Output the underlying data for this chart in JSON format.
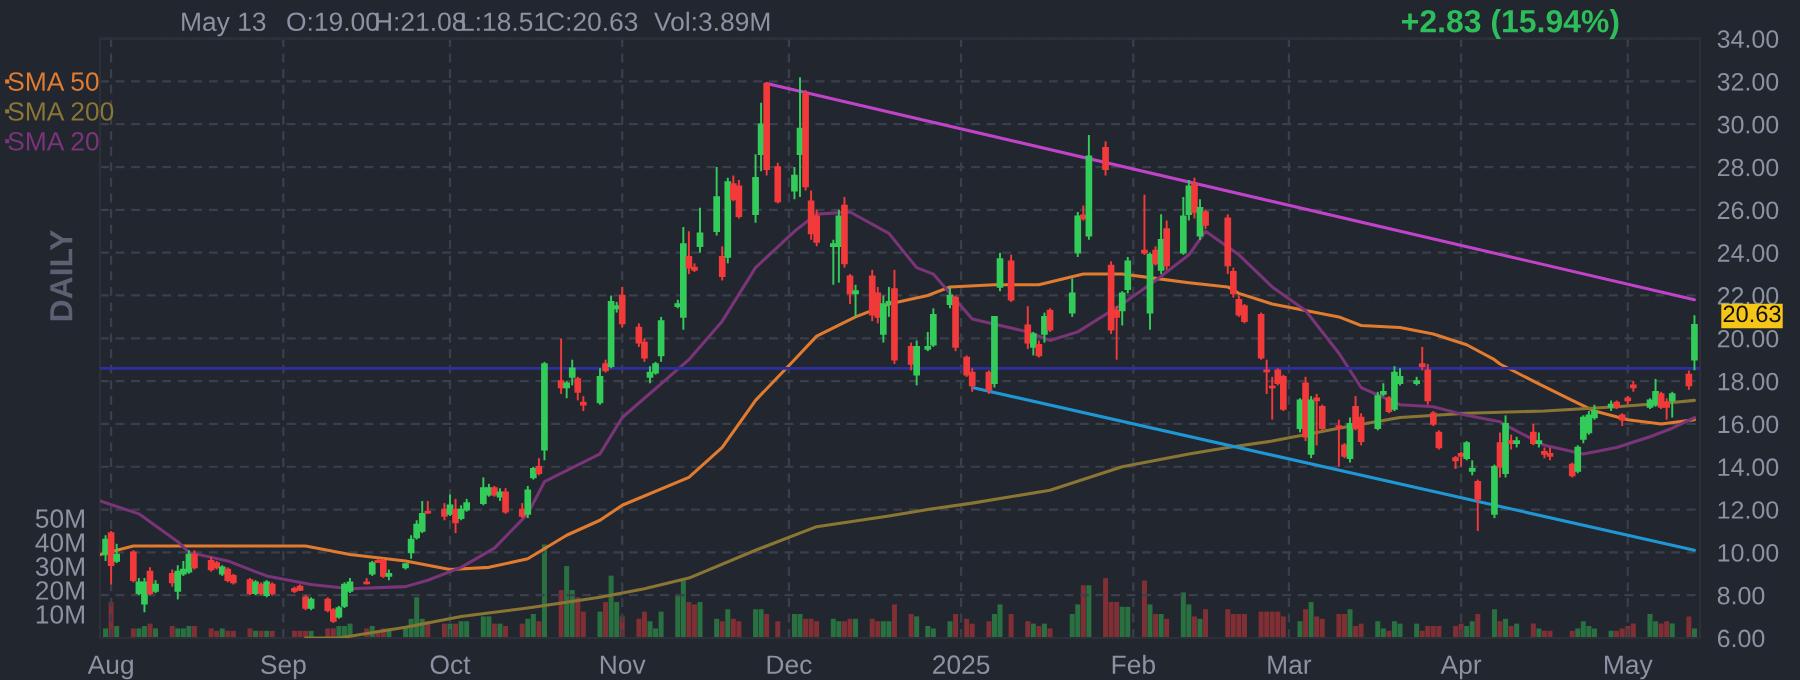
{
  "chart_data": {
    "type": "candlestick",
    "x": [
      "2024-07-31",
      "2024-08-01",
      "2024-08-02",
      "2024-08-05",
      "2024-08-06",
      "2024-08-07",
      "2024-08-08",
      "2024-08-09",
      "2024-08-12",
      "2024-08-13",
      "2024-08-14",
      "2024-08-15",
      "2024-08-16",
      "2024-08-19",
      "2024-08-20",
      "2024-08-21",
      "2024-08-22",
      "2024-08-23",
      "2024-08-26",
      "2024-08-27",
      "2024-08-28",
      "2024-08-29",
      "2024-08-30",
      "2024-09-03",
      "2024-09-04",
      "2024-09-05",
      "2024-09-06",
      "2024-09-09",
      "2024-09-10",
      "2024-09-11",
      "2024-09-12",
      "2024-09-13",
      "2024-09-16",
      "2024-09-17",
      "2024-09-18",
      "2024-09-19",
      "2024-09-20",
      "2024-09-23",
      "2024-09-24",
      "2024-09-25",
      "2024-09-26",
      "2024-09-27",
      "2024-09-30",
      "2024-10-01",
      "2024-10-02",
      "2024-10-03",
      "2024-10-04",
      "2024-10-07",
      "2024-10-08",
      "2024-10-09",
      "2024-10-10",
      "2024-10-11",
      "2024-10-14",
      "2024-10-15",
      "2024-10-16",
      "2024-10-17",
      "2024-10-18",
      "2024-10-21",
      "2024-10-22",
      "2024-10-23",
      "2024-10-24",
      "2024-10-25",
      "2024-10-28",
      "2024-10-29",
      "2024-10-30",
      "2024-10-31",
      "2024-11-01",
      "2024-11-04",
      "2024-11-05",
      "2024-11-06",
      "2024-11-07",
      "2024-11-08",
      "2024-11-11",
      "2024-11-12",
      "2024-11-13",
      "2024-11-14",
      "2024-11-15",
      "2024-11-18",
      "2024-11-19",
      "2024-11-20",
      "2024-11-21",
      "2024-11-22",
      "2024-11-25",
      "2024-11-26",
      "2024-11-27",
      "2024-11-29",
      "2024-12-02",
      "2024-12-03",
      "2024-12-04",
      "2024-12-05",
      "2024-12-06",
      "2024-12-09",
      "2024-12-10",
      "2024-12-11",
      "2024-12-12",
      "2024-12-13",
      "2024-12-16",
      "2024-12-17",
      "2024-12-18",
      "2024-12-19",
      "2024-12-20",
      "2024-12-23",
      "2024-12-24",
      "2024-12-26",
      "2024-12-27",
      "2024-12-30",
      "2024-12-31",
      "2025-01-02",
      "2025-01-03",
      "2025-01-06",
      "2025-01-07",
      "2025-01-08",
      "2025-01-10",
      "2025-01-13",
      "2025-01-14",
      "2025-01-15",
      "2025-01-16",
      "2025-01-17",
      "2025-01-21",
      "2025-01-22",
      "2025-01-23",
      "2025-01-24",
      "2025-01-27",
      "2025-01-28",
      "2025-01-29",
      "2025-01-30",
      "2025-01-31",
      "2025-02-03",
      "2025-02-04",
      "2025-02-05",
      "2025-02-06",
      "2025-02-07",
      "2025-02-10",
      "2025-02-11",
      "2025-02-12",
      "2025-02-13",
      "2025-02-14",
      "2025-02-18",
      "2025-02-19",
      "2025-02-20",
      "2025-02-21",
      "2025-02-24",
      "2025-02-25",
      "2025-02-26",
      "2025-02-27",
      "2025-02-28",
      "2025-03-03",
      "2025-03-04",
      "2025-03-05",
      "2025-03-06",
      "2025-03-07",
      "2025-03-10",
      "2025-03-11",
      "2025-03-12",
      "2025-03-13",
      "2025-03-14",
      "2025-03-17",
      "2025-03-18",
      "2025-03-19",
      "2025-03-20",
      "2025-03-21",
      "2025-03-24",
      "2025-03-25",
      "2025-03-26",
      "2025-03-27",
      "2025-03-28",
      "2025-03-31",
      "2025-04-01",
      "2025-04-02",
      "2025-04-03",
      "2025-04-04",
      "2025-04-07",
      "2025-04-08",
      "2025-04-09",
      "2025-04-10",
      "2025-04-11",
      "2025-04-14",
      "2025-04-15",
      "2025-04-16",
      "2025-04-17",
      "2025-04-21",
      "2025-04-22",
      "2025-04-23",
      "2025-04-24",
      "2025-04-25",
      "2025-04-28",
      "2025-04-29",
      "2025-04-30",
      "2025-05-01",
      "2025-05-02",
      "2025-05-05",
      "2025-05-06",
      "2025-05-07",
      "2025-05-08",
      "2025-05-09",
      "2025-05-12",
      "2025-05-13"
    ],
    "ohlc": [
      [
        9.9,
        10.8,
        9.6,
        10.6
      ],
      [
        10.9,
        11.0,
        8.5,
        9.4
      ],
      [
        9.6,
        10.4,
        9.5,
        9.9
      ],
      [
        10.0,
        10.1,
        8.6,
        8.7
      ],
      [
        8.1,
        8.8,
        8.0,
        8.6
      ],
      [
        7.6,
        8.8,
        7.2,
        8.6
      ],
      [
        9.1,
        9.3,
        8.0,
        8.1
      ],
      [
        8.2,
        8.7,
        8.1,
        8.5
      ],
      [
        9.0,
        9.2,
        8.4,
        8.6
      ],
      [
        8.2,
        9.4,
        7.8,
        9.1
      ],
      [
        9.0,
        9.6,
        8.9,
        9.2
      ],
      [
        9.1,
        10.1,
        9.0,
        9.9
      ],
      [
        9.9,
        10.1,
        9.2,
        9.3
      ],
      [
        9.6,
        9.8,
        9.1,
        9.2
      ],
      [
        9.5,
        9.6,
        9.2,
        9.3
      ],
      [
        9.0,
        9.4,
        8.9,
        9.3
      ],
      [
        9.2,
        9.3,
        8.6,
        8.7
      ],
      [
        8.9,
        9.0,
        8.5,
        8.6
      ],
      [
        8.7,
        8.8,
        8.0,
        8.1
      ],
      [
        8.1,
        8.7,
        8.0,
        8.6
      ],
      [
        8.5,
        8.6,
        8.0,
        8.1
      ],
      [
        8.0,
        8.7,
        7.9,
        8.6
      ],
      [
        8.5,
        8.6,
        8.0,
        8.1
      ],
      [
        8.3,
        8.4,
        8.1,
        8.2
      ],
      [
        8.4,
        8.5,
        8.2,
        8.25
      ],
      [
        7.9,
        8.0,
        7.3,
        7.4
      ],
      [
        7.4,
        7.9,
        7.3,
        7.8
      ],
      [
        7.8,
        7.9,
        7.2,
        7.3
      ],
      [
        7.3,
        7.4,
        6.7,
        6.8
      ],
      [
        7.0,
        7.5,
        6.9,
        7.4
      ],
      [
        7.5,
        8.6,
        7.4,
        8.5
      ],
      [
        8.2,
        8.8,
        8.1,
        8.6
      ],
      [
        8.6,
        8.8,
        8.5,
        8.55
      ],
      [
        9.0,
        9.6,
        8.9,
        9.5
      ],
      [
        9.6,
        9.7,
        9.5,
        9.55
      ],
      [
        9.6,
        9.7,
        8.8,
        8.9
      ],
      [
        8.9,
        9.2,
        8.7,
        9.0
      ],
      [
        9.3,
        9.5,
        9.2,
        9.45
      ],
      [
        10.0,
        10.8,
        9.7,
        10.6
      ],
      [
        10.7,
        11.5,
        10.6,
        11.3
      ],
      [
        11.0,
        12.4,
        10.9,
        11.8
      ],
      [
        11.9,
        12.4,
        11.8,
        11.85
      ],
      [
        12.0,
        12.3,
        11.5,
        11.7
      ],
      [
        11.8,
        12.7,
        11.7,
        12.2
      ],
      [
        12.0,
        12.5,
        10.9,
        11.4
      ],
      [
        11.6,
        12.2,
        11.5,
        12.0
      ],
      [
        12.0,
        12.5,
        11.9,
        12.3
      ],
      [
        12.3,
        13.5,
        12.2,
        13.0
      ],
      [
        12.7,
        13.2,
        12.6,
        13.0
      ],
      [
        13.0,
        13.1,
        12.6,
        12.7
      ],
      [
        12.6,
        13.0,
        12.4,
        12.8
      ],
      [
        12.8,
        13.0,
        11.8,
        11.9
      ],
      [
        12.0,
        12.3,
        11.6,
        11.7
      ],
      [
        11.8,
        13.1,
        11.6,
        12.9
      ],
      [
        13.5,
        14.0,
        13.4,
        13.9
      ],
      [
        14.0,
        14.4,
        13.6,
        13.7
      ],
      [
        14.8,
        18.9,
        14.3,
        18.8
      ],
      [
        18.0,
        20.0,
        17.4,
        17.7
      ],
      [
        17.7,
        18.0,
        17.2,
        17.9
      ],
      [
        18.2,
        19.0,
        17.8,
        18.6
      ],
      [
        18.1,
        18.2,
        17.1,
        17.5
      ],
      [
        17.0,
        17.3,
        16.6,
        16.9
      ],
      [
        17.0,
        18.6,
        16.9,
        18.2
      ],
      [
        18.8,
        19.0,
        18.4,
        18.5
      ],
      [
        18.7,
        22.0,
        18.6,
        21.7
      ],
      [
        21.4,
        21.7,
        21.2,
        21.5
      ],
      [
        22.0,
        22.4,
        20.5,
        20.7
      ],
      [
        20.5,
        20.7,
        19.6,
        19.8
      ],
      [
        19.8,
        20.0,
        18.9,
        19.1
      ],
      [
        18.2,
        18.7,
        17.9,
        18.4
      ],
      [
        18.4,
        18.9,
        18.3,
        18.8
      ],
      [
        19.2,
        21.0,
        18.9,
        20.8
      ],
      [
        21.5,
        21.8,
        21.4,
        21.6
      ],
      [
        21.0,
        25.2,
        20.4,
        24.4
      ],
      [
        23.8,
        25.0,
        23.0,
        23.3
      ],
      [
        23.3,
        23.5,
        23.1,
        23.2
      ],
      [
        24.3,
        26.1,
        24.0,
        24.9
      ],
      [
        25.0,
        28.0,
        24.8,
        26.6
      ],
      [
        23.8,
        24.3,
        22.7,
        22.9
      ],
      [
        23.8,
        27.5,
        23.5,
        27.3
      ],
      [
        27.2,
        27.6,
        26.4,
        26.5
      ],
      [
        27.1,
        27.4,
        25.6,
        25.7
      ],
      [
        25.8,
        28.6,
        25.4,
        27.5
      ],
      [
        28.6,
        31.0,
        27.8,
        30.0
      ],
      [
        31.9,
        31.9,
        27.6,
        27.9
      ],
      [
        28.0,
        28.2,
        26.3,
        26.4
      ],
      [
        26.9,
        28.0,
        26.5,
        27.6
      ],
      [
        28.6,
        32.2,
        26.6,
        29.8
      ],
      [
        31.4,
        31.6,
        26.9,
        27.1
      ],
      [
        26.4,
        26.9,
        24.6,
        24.9
      ],
      [
        25.7,
        26.0,
        24.3,
        24.5
      ],
      [
        24.3,
        24.6,
        22.5,
        24.4
      ],
      [
        24.3,
        26.0,
        22.6,
        25.7
      ],
      [
        26.2,
        26.6,
        23.3,
        23.5
      ],
      [
        22.9,
        23.0,
        21.6,
        22.1
      ],
      [
        22.1,
        22.5,
        21.0,
        22.2
      ],
      [
        22.9,
        23.2,
        20.8,
        21.1
      ],
      [
        22.1,
        22.4,
        20.7,
        21.0
      ],
      [
        20.2,
        22.0,
        19.8,
        21.6
      ],
      [
        21.6,
        22.4,
        21.0,
        21.7
      ],
      [
        22.3,
        23.2,
        18.8,
        19.0
      ],
      [
        19.6,
        19.8,
        18.5,
        18.8
      ],
      [
        18.3,
        19.9,
        17.8,
        19.6
      ],
      [
        19.5,
        20.3,
        19.4,
        19.6
      ],
      [
        19.7,
        21.4,
        19.6,
        21.1
      ],
      [
        21.6,
        22.4,
        21.4,
        22.0
      ],
      [
        21.9,
        22.0,
        19.4,
        19.6
      ],
      [
        19.1,
        19.2,
        18.2,
        18.3
      ],
      [
        18.4,
        18.6,
        17.5,
        17.8
      ],
      [
        18.4,
        18.5,
        17.4,
        17.6
      ],
      [
        17.9,
        21.0,
        17.7,
        21.0
      ],
      [
        22.4,
        24.0,
        22.2,
        23.7
      ],
      [
        23.6,
        23.9,
        21.7,
        21.8
      ],
      [
        20.6,
        21.5,
        19.5,
        19.8
      ],
      [
        19.6,
        20.3,
        19.2,
        20.2
      ],
      [
        19.7,
        19.9,
        19.1,
        19.2
      ],
      [
        20.2,
        21.2,
        19.8,
        21.0
      ],
      [
        21.3,
        21.4,
        20.3,
        20.4
      ],
      [
        21.2,
        22.8,
        21.0,
        22.1
      ],
      [
        24.0,
        25.9,
        23.8,
        25.7
      ],
      [
        25.75,
        26.2,
        25.5,
        25.6
      ],
      [
        24.8,
        29.5,
        24.6,
        28.5
      ],
      [
        28.9,
        29.2,
        27.6,
        27.9
      ],
      [
        23.4,
        23.6,
        20.2,
        20.4
      ],
      [
        21.3,
        21.5,
        19.0,
        21.0
      ],
      [
        21.3,
        22.2,
        20.6,
        22.1
      ],
      [
        22.3,
        23.8,
        22.1,
        23.6
      ],
      [
        24.1,
        26.7,
        23.9,
        24.0
      ],
      [
        21.2,
        24.0,
        20.4,
        23.9
      ],
      [
        24.1,
        24.3,
        23.4,
        23.5
      ],
      [
        23.2,
        25.8,
        23.0,
        24.6
      ],
      [
        25.1,
        25.5,
        23.2,
        23.4
      ],
      [
        24.0,
        26.6,
        23.9,
        25.7
      ],
      [
        25.8,
        27.4,
        25.5,
        27.1
      ],
      [
        27.2,
        27.5,
        25.6,
        25.9
      ],
      [
        24.8,
        26.5,
        24.6,
        26.1
      ],
      [
        25.9,
        26.0,
        25.1,
        25.3
      ],
      [
        25.6,
        25.8,
        23.0,
        23.4
      ],
      [
        23.1,
        23.3,
        21.9,
        22.1
      ],
      [
        21.8,
        22.0,
        21.0,
        21.1
      ],
      [
        21.5,
        21.6,
        20.7,
        20.8
      ],
      [
        21.1,
        21.2,
        19.0,
        19.1
      ],
      [
        18.5,
        19.0,
        17.4,
        18.45
      ],
      [
        17.75,
        18.2,
        16.2,
        17.7
      ],
      [
        18.5,
        18.6,
        17.8,
        17.9
      ],
      [
        18.2,
        18.3,
        16.6,
        16.7
      ],
      [
        15.8,
        17.2,
        15.6,
        17.1
      ],
      [
        17.9,
        18.2,
        15.2,
        15.4
      ],
      [
        14.6,
        17.3,
        14.4,
        17.1
      ],
      [
        17.2,
        17.4,
        15.0,
        17.1
      ],
      [
        16.8,
        16.9,
        15.7,
        15.8
      ],
      [
        15.9,
        16.2,
        14.0,
        15.8
      ],
      [
        15.0,
        15.1,
        14.4,
        14.5
      ],
      [
        14.4,
        16.3,
        14.2,
        16.0
      ],
      [
        16.8,
        17.3,
        15.7,
        15.8
      ],
      [
        16.3,
        16.5,
        15.0,
        15.2
      ],
      [
        15.8,
        17.5,
        15.7,
        17.3
      ],
      [
        17.4,
        17.9,
        17.3,
        17.5
      ],
      [
        17.2,
        17.3,
        16.5,
        16.6
      ],
      [
        16.7,
        18.7,
        16.6,
        18.4
      ],
      [
        17.9,
        18.6,
        17.8,
        18.2
      ],
      [
        17.9,
        18.2,
        17.8,
        18.0
      ],
      [
        18.8,
        19.6,
        18.5,
        18.7
      ],
      [
        18.5,
        18.8,
        16.9,
        17.1
      ],
      [
        16.5,
        16.6,
        15.9,
        16.0
      ],
      [
        15.6,
        15.7,
        14.8,
        14.9
      ],
      [
        14.4,
        14.5,
        13.9,
        14.3
      ],
      [
        14.6,
        14.7,
        14.0,
        14.5
      ],
      [
        14.4,
        15.2,
        14.3,
        15.1
      ],
      [
        13.8,
        14.3,
        13.6,
        13.9
      ],
      [
        13.3,
        13.4,
        11.0,
        12.5
      ],
      [
        11.8,
        14.1,
        11.6,
        14.0
      ],
      [
        15.1,
        15.6,
        13.5,
        14.0
      ],
      [
        13.7,
        16.4,
        13.5,
        16.0
      ],
      [
        15.2,
        15.5,
        14.8,
        15.1
      ],
      [
        15.1,
        15.4,
        14.9,
        15.2
      ],
      [
        15.6,
        16.0,
        15.0,
        15.1
      ],
      [
        15.1,
        15.6,
        14.9,
        15.2
      ],
      [
        14.7,
        14.9,
        14.4,
        14.6
      ],
      [
        14.6,
        14.9,
        14.3,
        14.5
      ],
      [
        14.1,
        14.2,
        13.5,
        13.6
      ],
      [
        13.8,
        15.0,
        13.7,
        14.9
      ],
      [
        15.3,
        16.4,
        15.1,
        16.3
      ],
      [
        15.6,
        16.6,
        15.5,
        16.4
      ],
      [
        16.3,
        16.9,
        16.2,
        16.6
      ],
      [
        16.8,
        17.1,
        16.6,
        16.9
      ],
      [
        17.0,
        17.1,
        16.7,
        16.8
      ],
      [
        16.4,
        16.5,
        15.9,
        16.2
      ],
      [
        17.2,
        17.3,
        16.9,
        17.1
      ],
      [
        17.8,
        18.0,
        17.5,
        17.7
      ],
      [
        16.8,
        17.2,
        16.7,
        17.1
      ],
      [
        16.9,
        18.1,
        16.8,
        17.5
      ],
      [
        17.4,
        17.5,
        16.7,
        16.8
      ],
      [
        17.0,
        17.2,
        16.2,
        16.8
      ],
      [
        17.1,
        17.5,
        16.3,
        17.4
      ],
      [
        18.3,
        18.5,
        17.6,
        17.8
      ],
      [
        19.0,
        21.08,
        18.51,
        20.63
      ]
    ],
    "colors": [
      "#33cc5a",
      "#f23a3a",
      "#33cc5a",
      "#f23a3a",
      "#33cc5a",
      "#33cc5a",
      "#f23a3a",
      "#33cc5a",
      "#f23a3a",
      "#33cc5a",
      "#33cc5a",
      "#33cc5a",
      "#f23a3a",
      "#f23a3a",
      "#f23a3a",
      "#33cc5a",
      "#f23a3a",
      "#f23a3a",
      "#f23a3a",
      "#33cc5a",
      "#f23a3a",
      "#33cc5a",
      "#f23a3a",
      "#f23a3a",
      "#f23a3a",
      "#f23a3a",
      "#33cc5a",
      "#f23a3a",
      "#f23a3a",
      "#33cc5a",
      "#33cc5a",
      "#33cc5a",
      "#f23a3a",
      "#33cc5a",
      "#f23a3a",
      "#f23a3a",
      "#33cc5a",
      "#33cc5a",
      "#33cc5a",
      "#33cc5a",
      "#33cc5a",
      "#f23a3a",
      "#f23a3a",
      "#33cc5a",
      "#f23a3a",
      "#33cc5a",
      "#33cc5a",
      "#33cc5a",
      "#33cc5a",
      "#f23a3a",
      "#33cc5a",
      "#f23a3a",
      "#f23a3a",
      "#33cc5a",
      "#33cc5a",
      "#f23a3a",
      "#33cc5a",
      "#f23a3a",
      "#33cc5a",
      "#33cc5a",
      "#f23a3a",
      "#f23a3a",
      "#33cc5a",
      "#f23a3a",
      "#33cc5a",
      "#33cc5a",
      "#f23a3a",
      "#f23a3a",
      "#f23a3a",
      "#33cc5a",
      "#33cc5a",
      "#33cc5a",
      "#33cc5a",
      "#33cc5a",
      "#f23a3a",
      "#f23a3a",
      "#33cc5a",
      "#33cc5a",
      "#f23a3a",
      "#33cc5a",
      "#f23a3a",
      "#f23a3a",
      "#33cc5a",
      "#33cc5a",
      "#f23a3a",
      "#f23a3a",
      "#33cc5a",
      "#33cc5a",
      "#f23a3a",
      "#f23a3a",
      "#f23a3a",
      "#33cc5a",
      "#33cc5a",
      "#f23a3a",
      "#f23a3a",
      "#33cc5a",
      "#f23a3a",
      "#f23a3a",
      "#33cc5a",
      "#33cc5a",
      "#f23a3a",
      "#f23a3a",
      "#33cc5a",
      "#33cc5a",
      "#33cc5a",
      "#33cc5a",
      "#f23a3a",
      "#f23a3a",
      "#f23a3a",
      "#f23a3a",
      "#33cc5a",
      "#33cc5a",
      "#f23a3a",
      "#f23a3a",
      "#33cc5a",
      "#f23a3a",
      "#33cc5a",
      "#f23a3a",
      "#33cc5a",
      "#33cc5a",
      "#f23a3a",
      "#33cc5a",
      "#f23a3a",
      "#f23a3a",
      "#f23a3a",
      "#33cc5a",
      "#33cc5a",
      "#f23a3a",
      "#33cc5a",
      "#f23a3a",
      "#33cc5a",
      "#f23a3a",
      "#33cc5a",
      "#33cc5a",
      "#f23a3a",
      "#33cc5a",
      "#f23a3a",
      "#f23a3a",
      "#f23a3a",
      "#f23a3a",
      "#f23a3a",
      "#f23a3a",
      "#f23a3a",
      "#f23a3a",
      "#f23a3a",
      "#f23a3a",
      "#33cc5a",
      "#f23a3a",
      "#33cc5a",
      "#f23a3a",
      "#f23a3a",
      "#f23a3a",
      "#f23a3a",
      "#33cc5a",
      "#f23a3a",
      "#f23a3a",
      "#33cc5a",
      "#33cc5a",
      "#f23a3a",
      "#33cc5a",
      "#33cc5a",
      "#33cc5a",
      "#f23a3a",
      "#f23a3a",
      "#f23a3a",
      "#f23a3a",
      "#f23a3a",
      "#f23a3a",
      "#33cc5a",
      "#33cc5a",
      "#f23a3a",
      "#33cc5a",
      "#f23a3a",
      "#33cc5a",
      "#f23a3a",
      "#33cc5a",
      "#f23a3a",
      "#33cc5a",
      "#f23a3a",
      "#f23a3a",
      "#f23a3a",
      "#33cc5a",
      "#33cc5a",
      "#33cc5a",
      "#33cc5a",
      "#33cc5a",
      "#f23a3a",
      "#f23a3a",
      "#f23a3a",
      "#f23a3a",
      "#33cc5a",
      "#33cc5a",
      "#f23a3a",
      "#f23a3a",
      "#33cc5a",
      "#f23a3a",
      "#33cc5a"
    ],
    "series": [
      {
        "type": "bar",
        "axis": "y2",
        "colors": [
          "#2a7142",
          "#802f34",
          "#2a7142",
          "#802f34",
          "#2a7142",
          "#2a7142",
          "#802f34",
          "#2a7142",
          "#802f34",
          "#2a7142",
          "#2a7142",
          "#2a7142",
          "#802f34",
          "#802f34",
          "#802f34",
          "#2a7142",
          "#802f34",
          "#802f34",
          "#802f34",
          "#2a7142",
          "#802f34",
          "#2a7142",
          "#802f34",
          "#802f34",
          "#802f34",
          "#802f34",
          "#2a7142",
          "#802f34",
          "#802f34",
          "#2a7142",
          "#2a7142",
          "#2a7142",
          "#802f34",
          "#2a7142",
          "#802f34",
          "#802f34",
          "#2a7142",
          "#2a7142",
          "#2a7142",
          "#2a7142",
          "#2a7142",
          "#802f34",
          "#802f34",
          "#2a7142",
          "#802f34",
          "#2a7142",
          "#2a7142",
          "#2a7142",
          "#2a7142",
          "#802f34",
          "#2a7142",
          "#802f34",
          "#802f34",
          "#2a7142",
          "#2a7142",
          "#802f34",
          "#2a7142",
          "#802f34",
          "#2a7142",
          "#2a7142",
          "#802f34",
          "#802f34",
          "#2a7142",
          "#802f34",
          "#2a7142",
          "#2a7142",
          "#802f34",
          "#802f34",
          "#802f34",
          "#2a7142",
          "#2a7142",
          "#2a7142",
          "#2a7142",
          "#2a7142",
          "#802f34",
          "#802f34",
          "#2a7142",
          "#2a7142",
          "#802f34",
          "#2a7142",
          "#802f34",
          "#802f34",
          "#2a7142",
          "#2a7142",
          "#802f34",
          "#802f34",
          "#2a7142",
          "#2a7142",
          "#802f34",
          "#802f34",
          "#802f34",
          "#2a7142",
          "#2a7142",
          "#802f34",
          "#802f34",
          "#2a7142",
          "#802f34",
          "#802f34",
          "#2a7142",
          "#2a7142",
          "#802f34",
          "#802f34",
          "#2a7142",
          "#2a7142",
          "#2a7142",
          "#2a7142",
          "#802f34",
          "#802f34",
          "#802f34",
          "#802f34",
          "#2a7142",
          "#2a7142",
          "#802f34",
          "#802f34",
          "#2a7142",
          "#802f34",
          "#2a7142",
          "#802f34",
          "#2a7142",
          "#2a7142",
          "#802f34",
          "#2a7142",
          "#802f34",
          "#802f34",
          "#802f34",
          "#2a7142",
          "#2a7142",
          "#802f34",
          "#2a7142",
          "#802f34",
          "#2a7142",
          "#802f34",
          "#2a7142",
          "#2a7142",
          "#802f34",
          "#2a7142",
          "#802f34",
          "#802f34",
          "#802f34",
          "#802f34",
          "#802f34",
          "#802f34",
          "#802f34",
          "#802f34",
          "#802f34",
          "#802f34",
          "#2a7142",
          "#802f34",
          "#2a7142",
          "#802f34",
          "#802f34",
          "#802f34",
          "#802f34",
          "#2a7142",
          "#802f34",
          "#802f34",
          "#2a7142",
          "#2a7142",
          "#802f34",
          "#2a7142",
          "#2a7142",
          "#2a7142",
          "#802f34",
          "#802f34",
          "#802f34",
          "#802f34",
          "#802f34",
          "#802f34",
          "#2a7142",
          "#2a7142",
          "#802f34",
          "#2a7142",
          "#802f34",
          "#2a7142",
          "#802f34",
          "#2a7142",
          "#802f34",
          "#2a7142",
          "#802f34",
          "#802f34",
          "#802f34",
          "#2a7142",
          "#2a7142",
          "#2a7142",
          "#2a7142",
          "#2a7142",
          "#802f34",
          "#802f34",
          "#802f34",
          "#802f34",
          "#2a7142",
          "#2a7142",
          "#802f34",
          "#802f34",
          "#2a7142",
          "#802f34",
          "#2a7142"
        ],
        "values": [
          4,
          15,
          5,
          4,
          4,
          5,
          6,
          4,
          5,
          4,
          4,
          5,
          5,
          4,
          3,
          4,
          3,
          3,
          4,
          3,
          3,
          3,
          3,
          3,
          3,
          3,
          3,
          4,
          4,
          5,
          5,
          6,
          4,
          5,
          3,
          4,
          4,
          5,
          8,
          17,
          8,
          7,
          6,
          6,
          6,
          7,
          7,
          9,
          9,
          6,
          6,
          5,
          6,
          8,
          10,
          7,
          39,
          20,
          30,
          20,
          17,
          11,
          11,
          15,
          26,
          15,
          9,
          8,
          11,
          7,
          4,
          11,
          18,
          24,
          15,
          14,
          15,
          8,
          7,
          12,
          8,
          7,
          12,
          12,
          10,
          7,
          10,
          10,
          8,
          8,
          7,
          8,
          7,
          7,
          8,
          8,
          8,
          7,
          7,
          7,
          14,
          10,
          9,
          5,
          4,
          7,
          10,
          8,
          6,
          7,
          10,
          14,
          10,
          7,
          6,
          5,
          6,
          4,
          10,
          14,
          22,
          22,
          25,
          15,
          15,
          13,
          13,
          24,
          14,
          10,
          10,
          8,
          19,
          14,
          9,
          8,
          12,
          12,
          10,
          10,
          10,
          11,
          11,
          11,
          11,
          9,
          7,
          12,
          15,
          9,
          8,
          10,
          10,
          12,
          5,
          6,
          7,
          4,
          3,
          7,
          6,
          6,
          3,
          5,
          5,
          5,
          5,
          6,
          5,
          7,
          10,
          12,
          7,
          8,
          5,
          6,
          6,
          4,
          3,
          3,
          3,
          4,
          7,
          5,
          4,
          3,
          3,
          4,
          5,
          6,
          10,
          7,
          6,
          7,
          6,
          9,
          4
        ]
      },
      {
        "name": "SMA 50",
        "type": "line",
        "color": "#e07b30",
        "x": [
          "2024-07-30",
          "2024-08-05",
          "2024-09-05",
          "2024-09-13",
          "2024-09-23",
          "2024-10-01",
          "2024-10-08",
          "2024-10-15",
          "2024-10-22",
          "2024-10-28",
          "2024-11-01",
          "2024-11-13",
          "2024-11-19",
          "2024-11-25",
          "2024-12-02",
          "2024-12-06",
          "2024-12-13",
          "2024-12-19",
          "2024-12-26",
          "2024-12-30",
          "2025-01-07",
          "2025-01-15",
          "2025-01-23",
          "2025-01-30",
          "2025-02-05",
          "2025-02-11",
          "2025-02-18",
          "2025-02-20",
          "2025-02-26",
          "2025-03-04",
          "2025-03-10",
          "2025-03-14",
          "2025-03-21",
          "2025-03-27",
          "2025-04-02",
          "2025-04-07",
          "2025-04-08",
          "2025-04-14",
          "2025-04-21",
          "2025-04-25",
          "2025-05-01",
          "2025-05-07",
          "2025-05-13"
        ],
        "values": [
          9.9,
          10.3,
          10.3,
          9.9,
          9.6,
          9.2,
          9.3,
          9.7,
          10.8,
          11.5,
          12.2,
          13.5,
          14.9,
          17.1,
          19.0,
          20.1,
          21.0,
          21.6,
          22.0,
          22.4,
          22.5,
          22.5,
          23.0,
          23.0,
          22.8,
          22.6,
          22.4,
          22.1,
          21.6,
          21.3,
          21.0,
          20.6,
          20.5,
          20.2,
          19.7,
          19.0,
          18.8,
          18.0,
          17.1,
          16.6,
          16.2,
          16.0,
          16.2
        ]
      },
      {
        "name": "SMA 200",
        "type": "line",
        "color": "#8a7634",
        "x": [
          "2024-09-05",
          "2024-09-11",
          "2024-09-23",
          "2024-10-03",
          "2024-10-15",
          "2024-10-28",
          "2024-11-05",
          "2024-11-13",
          "2024-11-25",
          "2024-12-06",
          "2024-12-19",
          "2024-12-26",
          "2025-01-03",
          "2025-01-17",
          "2025-01-30",
          "2025-02-11",
          "2025-02-18",
          "2025-02-26",
          "2025-03-10",
          "2025-03-21",
          "2025-04-02",
          "2025-04-16",
          "2025-04-29",
          "2025-05-09",
          "2025-05-13"
        ],
        "values": [
          6.0,
          6.0,
          6.5,
          7.0,
          7.4,
          7.9,
          8.3,
          8.8,
          10.1,
          11.2,
          11.7,
          12.0,
          12.3,
          12.9,
          14.0,
          14.6,
          14.9,
          15.2,
          15.8,
          16.3,
          16.5,
          16.6,
          16.8,
          17.0,
          17.1
        ]
      },
      {
        "name": "SMA 20",
        "type": "line",
        "color": "#7a3478",
        "x": [
          "2024-07-30",
          "2024-08-06",
          "2024-08-13",
          "2024-08-15",
          "2024-08-22",
          "2024-08-29",
          "2024-09-06",
          "2024-09-13",
          "2024-09-23",
          "2024-09-27",
          "2024-10-03",
          "2024-10-09",
          "2024-10-15",
          "2024-10-18",
          "2024-10-28",
          "2024-11-01",
          "2024-11-13",
          "2024-11-19",
          "2024-11-25",
          "2024-12-02",
          "2024-12-06",
          "2024-12-12",
          "2024-12-19",
          "2024-12-24",
          "2024-12-27",
          "2025-01-03",
          "2025-01-13",
          "2025-01-17",
          "2025-01-22",
          "2025-01-30",
          "2025-02-05",
          "2025-02-11",
          "2025-02-14",
          "2025-02-20",
          "2025-02-26",
          "2025-03-04",
          "2025-03-10",
          "2025-03-14",
          "2025-03-21",
          "2025-03-27",
          "2025-04-02",
          "2025-04-08",
          "2025-04-10",
          "2025-04-16",
          "2025-04-23",
          "2025-04-29",
          "2025-05-05",
          "2025-05-09",
          "2025-05-13"
        ],
        "values": [
          12.4,
          11.8,
          10.5,
          10.0,
          9.6,
          8.9,
          8.5,
          8.3,
          8.4,
          8.7,
          9.3,
          10.2,
          11.8,
          13.3,
          14.6,
          16.3,
          19.0,
          20.8,
          23.3,
          25.0,
          25.8,
          25.9,
          24.9,
          23.3,
          23.0,
          20.9,
          20.3,
          19.9,
          20.3,
          21.6,
          22.7,
          23.9,
          25.0,
          23.9,
          22.4,
          21.3,
          19.3,
          17.7,
          16.9,
          16.8,
          16.4,
          16.1,
          15.8,
          15.0,
          14.6,
          14.9,
          15.4,
          15.8,
          16.3
        ]
      },
      {
        "type": "line",
        "color": "#c043c9",
        "x": [
          "2024-11-27",
          "2025-05-13"
        ],
        "values": [
          31.9,
          21.8
        ]
      },
      {
        "type": "line",
        "color": "#1f97d4",
        "x": [
          "2025-01-03",
          "2025-05-13"
        ],
        "values": [
          17.7,
          10.1
        ]
      }
    ],
    "ref_lines": [
      {
        "axis": "y",
        "value": 18.6,
        "color": "#2e2f9e"
      }
    ],
    "xlim": [
      "2024-07-30",
      "2025-05-14"
    ],
    "xticks": [
      {
        "value": "2024-08-01",
        "label": "Aug"
      },
      {
        "value": "2024-09-01",
        "label": "Sep"
      },
      {
        "value": "2024-10-01",
        "label": "Oct"
      },
      {
        "value": "2024-11-01",
        "label": "Nov"
      },
      {
        "value": "2024-12-01",
        "label": "Dec"
      },
      {
        "value": "2025-01-01",
        "label": "2025"
      },
      {
        "value": "2025-02-01",
        "label": "Feb"
      },
      {
        "value": "2025-03-01",
        "label": "Mar"
      },
      {
        "value": "2025-04-01",
        "label": "Apr"
      },
      {
        "value": "2025-05-01",
        "label": "May"
      }
    ],
    "ylim": [
      6,
      34
    ],
    "yticks": [
      {
        "value": 6,
        "label": "6.00"
      },
      {
        "value": 8,
        "label": "8.00"
      },
      {
        "value": 10,
        "label": "10.00"
      },
      {
        "value": 12,
        "label": "12.00"
      },
      {
        "value": 14,
        "label": "14.00"
      },
      {
        "value": 16,
        "label": "16.00"
      },
      {
        "value": 18,
        "label": "18.00"
      },
      {
        "value": 20,
        "label": "20.00"
      },
      {
        "value": 22,
        "label": "22.00"
      },
      {
        "value": 24,
        "label": "24.00"
      },
      {
        "value": 26,
        "label": "26.00"
      },
      {
        "value": 28,
        "label": "28.00"
      },
      {
        "value": 30,
        "label": "30.00"
      },
      {
        "value": 32,
        "label": "32.00"
      },
      {
        "value": 34,
        "label": "34.00"
      }
    ],
    "y2lim": [
      0,
      250
    ],
    "y2ticks": [
      {
        "value": 10,
        "label": "10M"
      },
      {
        "value": 20,
        "label": "20M"
      },
      {
        "value": 30,
        "label": "30M"
      },
      {
        "value": 40,
        "label": "40M"
      },
      {
        "value": 50,
        "label": "50M"
      }
    ],
    "annotations": [
      "May 13",
      "O:19.00",
      "H:21.08",
      "L:18.51",
      "C:20.63",
      "Vol:3.89M",
      "+2.83 (15.94%)",
      "DAILY",
      "20.63"
    ],
    "grid": true,
    "legend": "top left"
  }
}
